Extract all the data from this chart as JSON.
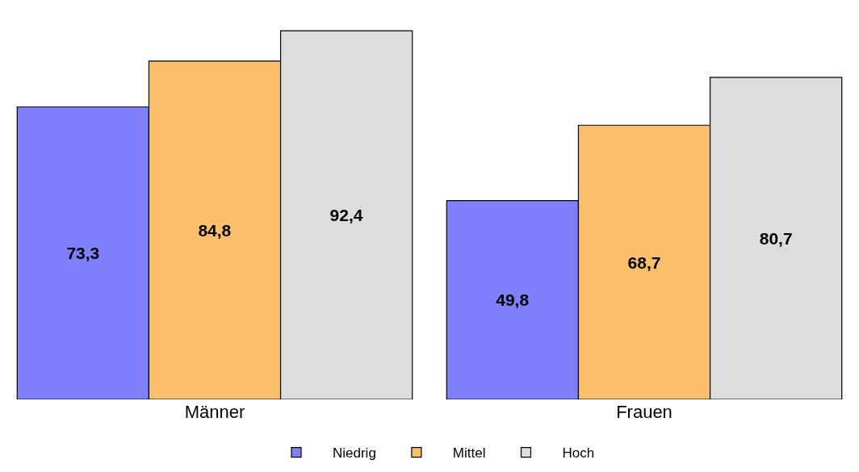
{
  "chart_data": {
    "type": "bar",
    "categories": [
      "Männer",
      "Frauen"
    ],
    "series": [
      {
        "name": "Niedrig",
        "color": "#8080ff",
        "values": [
          73.3,
          49.8
        ],
        "value_labels": [
          "73,3",
          "49,8"
        ]
      },
      {
        "name": "Mittel",
        "color": "#fbbf6b",
        "values": [
          84.8,
          68.7
        ],
        "value_labels": [
          "84,8",
          "68,7"
        ]
      },
      {
        "name": "Hoch",
        "color": "#dddddd",
        "values": [
          92.4,
          80.7
        ],
        "value_labels": [
          "92,4",
          "80,7"
        ]
      }
    ],
    "grid": false,
    "legend": "bottom",
    "tick_labels": "x"
  }
}
